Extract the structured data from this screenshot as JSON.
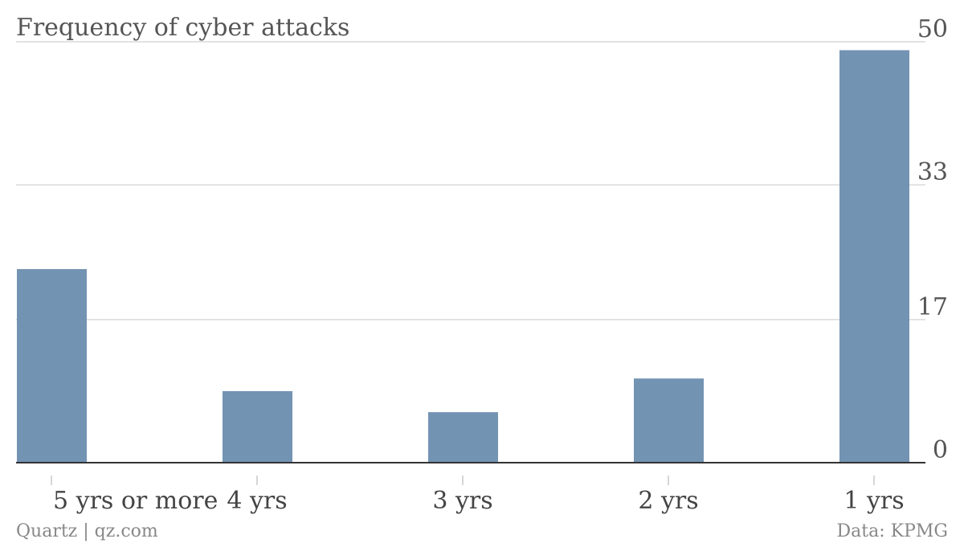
{
  "chart_data": {
    "type": "bar",
    "title": "Frequency of cyber attacks",
    "categories": [
      "5 yrs or more",
      "4 yrs",
      "3 yrs",
      "2 yrs",
      "1 yrs"
    ],
    "values": [
      23,
      8.5,
      6,
      10,
      49
    ],
    "yticks": [
      "0",
      "17",
      "33",
      "50"
    ],
    "ylim": [
      0,
      50
    ],
    "y_axis_position": "right",
    "grid": true,
    "bar_color": "#7393b3"
  },
  "footer": {
    "credit": "Quartz | qz.com",
    "source": "Data: KPMG"
  }
}
